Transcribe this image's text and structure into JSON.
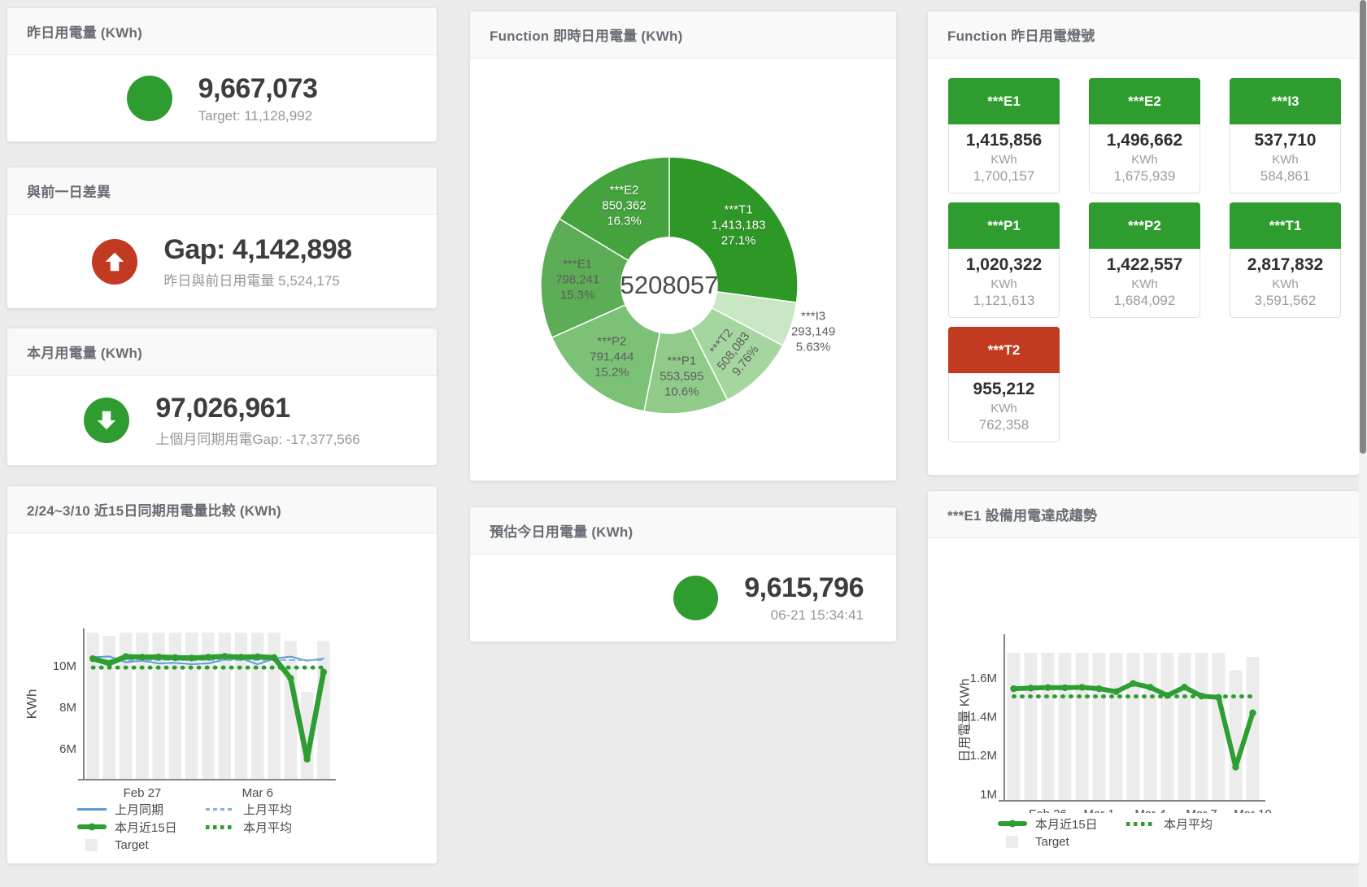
{
  "colors": {
    "green": "#2e9c2e",
    "red": "#c23a22",
    "bar_gray": "#ececec",
    "blue": "#5d9cd3",
    "blue_light": "#7fb2dd",
    "chart_green": "#2f9e32"
  },
  "panels": {
    "yesterday": {
      "title": "昨日用電量 (KWh)",
      "value": "9,667,073",
      "subtitle": "Target: 11,128,992"
    },
    "gap": {
      "title": "與前一日差異",
      "value": "Gap: 4,142,898",
      "subtitle": "昨日與前日用電量 5,524,175"
    },
    "month": {
      "title": "本月用電量 (KWh)",
      "value": "97,026,961",
      "subtitle": "上個月同期用電Gap: -17,377,566"
    },
    "realtime": {
      "title": "Function 即時日用電量 (KWh)"
    },
    "estimate": {
      "title": "預估今日用電量 (KWh)",
      "value": "9,615,796",
      "subtitle": "06-21 15:34:41"
    },
    "tiles": {
      "title": "Function 昨日用電燈號"
    },
    "compare": {
      "title": "2/24~3/10 近15日同期用電量比較 (KWh)"
    },
    "trend": {
      "title": "***E1 設備用電達成趨勢"
    }
  },
  "tiles": [
    {
      "label": "***E1",
      "value": "1,415,856",
      "unit": "KWh",
      "target": "1,700,157",
      "status": "green"
    },
    {
      "label": "***E2",
      "value": "1,496,662",
      "unit": "KWh",
      "target": "1,675,939",
      "status": "green"
    },
    {
      "label": "***I3",
      "value": "537,710",
      "unit": "KWh",
      "target": "584,861",
      "status": "green"
    },
    {
      "label": "***P1",
      "value": "1,020,322",
      "unit": "KWh",
      "target": "1,121,613",
      "status": "green"
    },
    {
      "label": "***P2",
      "value": "1,422,557",
      "unit": "KWh",
      "target": "1,684,092",
      "status": "green"
    },
    {
      "label": "***T1",
      "value": "2,817,832",
      "unit": "KWh",
      "target": "3,591,562",
      "status": "green"
    },
    {
      "label": "***T2",
      "value": "955,212",
      "unit": "KWh",
      "target": "762,358",
      "status": "red"
    }
  ],
  "chart_data": [
    {
      "type": "pie",
      "title": "Function 即時日用電量 (KWh)",
      "center_total": "5208057",
      "slices": [
        {
          "name": "***T1",
          "value": 1413183,
          "display": "1,413,183",
          "pct": "27.1%",
          "color": "#2e9827",
          "label_color": "#ffffff"
        },
        {
          "name": "***I3",
          "value": 293149,
          "display": "293,149",
          "pct": "5.63%",
          "color": "#c9e7c5",
          "label_color": "#5d5d5d",
          "outside": true
        },
        {
          "name": "***T2",
          "value": 508083,
          "display": "508,083",
          "pct": "9.76%",
          "color": "#a6d6a0",
          "label_color": "#5d5d5d",
          "rotate": -52
        },
        {
          "name": "***P1",
          "value": 553595,
          "display": "553,595",
          "pct": "10.6%",
          "color": "#90cb8a",
          "label_color": "#5d5d5d"
        },
        {
          "name": "***P2",
          "value": 791444,
          "display": "791,444",
          "pct": "15.2%",
          "color": "#7cc276",
          "label_color": "#5d5d5d"
        },
        {
          "name": "***E1",
          "value": 798241,
          "display": "798,241",
          "pct": "15.3%",
          "color": "#5cad55",
          "label_color": "#5d5d5d"
        },
        {
          "name": "***E2",
          "value": 850362,
          "display": "850,362",
          "pct": "16.3%",
          "color": "#45a33e",
          "label_color": "#ffffff"
        }
      ]
    },
    {
      "type": "line",
      "title": "2/24~3/10 近15日同期用電量比較 (KWh)",
      "ylabel": "KWh",
      "ylim": [
        4.55,
        11.65
      ],
      "grid": false,
      "legend_position": "bottom",
      "yticks": [
        {
          "v": 6,
          "label": "6M"
        },
        {
          "v": 8,
          "label": "8M"
        },
        {
          "v": 10,
          "label": "10M"
        }
      ],
      "xticks": [
        {
          "i": 3,
          "label": "Feb 27"
        },
        {
          "i": 10,
          "label": "Mar 6"
        }
      ],
      "x_days": "2/24 - 3/10 (15 days)",
      "target": {
        "name": "Target",
        "color": "#ececec",
        "values": [
          11.6,
          11.45,
          11.6,
          11.6,
          11.6,
          11.6,
          11.6,
          11.6,
          11.6,
          11.6,
          11.6,
          11.6,
          11.2,
          8.75,
          11.2
        ]
      },
      "series": [
        {
          "name": "上月同期",
          "type": "line",
          "color": "#5d9cd3",
          "width": 2,
          "values": [
            10.42,
            10.46,
            10.18,
            10.25,
            10.12,
            10.15,
            10.08,
            10.12,
            10.3,
            10.35,
            10.08,
            10.35,
            10.45,
            10.25,
            10.35
          ]
        },
        {
          "name": "上月平均",
          "type": "dash",
          "color": "#7fb2dd",
          "width": 2,
          "values": [
            10.28,
            10.28,
            10.28,
            10.28,
            10.28,
            10.28,
            10.28,
            10.28,
            10.28,
            10.28,
            10.28,
            10.28,
            10.28,
            10.28,
            10.28
          ]
        },
        {
          "name": "本月近15日",
          "type": "thick",
          "color": "#2f9e32",
          "width": 6.5,
          "dots": true,
          "values": [
            10.35,
            10.12,
            10.45,
            10.42,
            10.43,
            10.4,
            10.38,
            10.42,
            10.46,
            10.42,
            10.44,
            10.4,
            9.4,
            5.5,
            9.7
          ]
        },
        {
          "name": "本月平均",
          "type": "dots",
          "color": "#2f9e32",
          "width": 5,
          "values": [
            9.92,
            9.92,
            9.92,
            9.92,
            9.92,
            9.92,
            9.92,
            9.92,
            9.92,
            9.92,
            9.92,
            9.92,
            9.92,
            9.92,
            9.92
          ]
        }
      ],
      "legend": [
        {
          "label": "上月同期",
          "swatch": "line",
          "color": "#5d9cd3"
        },
        {
          "label": "上月平均",
          "swatch": "dash",
          "color": "#7fb2dd"
        },
        {
          "label": "本月近15日",
          "swatch": "thick",
          "color": "#2f9e32"
        },
        {
          "label": "本月平均",
          "swatch": "dots",
          "color": "#2f9e32"
        },
        {
          "label": "Target",
          "swatch": "box",
          "color": "#ececec"
        }
      ]
    },
    {
      "type": "line",
      "title": "***E1 設備用電達成趨勢",
      "ylabel": "日用電量 KWh",
      "ylim": [
        0.97,
        1.81
      ],
      "grid": false,
      "legend_position": "bottom",
      "yticks": [
        {
          "v": 1,
          "label": "1M"
        },
        {
          "v": 1.2,
          "label": "1.2M"
        },
        {
          "v": 1.4,
          "label": "1.4M"
        },
        {
          "v": 1.6,
          "label": "1.6M"
        }
      ],
      "xticks": [
        {
          "i": 2,
          "label": "Feb 26"
        },
        {
          "i": 5,
          "label": "Mar 1"
        },
        {
          "i": 8,
          "label": "Mar 4"
        },
        {
          "i": 11,
          "label": "Mar 7"
        },
        {
          "i": 14,
          "label": "Mar 10"
        }
      ],
      "x_days": "2/24 - 3/10 (15 days)",
      "target": {
        "name": "Target",
        "color": "#ececec",
        "values": [
          1.73,
          1.73,
          1.73,
          1.73,
          1.73,
          1.73,
          1.73,
          1.73,
          1.73,
          1.73,
          1.73,
          1.73,
          1.73,
          1.64,
          1.71
        ]
      },
      "series": [
        {
          "name": "本月近15日",
          "type": "thick",
          "color": "#2f9e32",
          "width": 6,
          "dots": true,
          "values": [
            1.545,
            1.548,
            1.551,
            1.55,
            1.552,
            1.545,
            1.53,
            1.572,
            1.552,
            1.51,
            1.553,
            1.507,
            1.5,
            1.14,
            1.42
          ]
        },
        {
          "name": "本月平均",
          "type": "dots",
          "color": "#2f9e32",
          "width": 5,
          "values": [
            1.505,
            1.505,
            1.505,
            1.505,
            1.505,
            1.505,
            1.505,
            1.505,
            1.505,
            1.505,
            1.505,
            1.505,
            1.505,
            1.505,
            1.505
          ]
        }
      ],
      "legend": [
        {
          "label": "本月近15日",
          "swatch": "thick",
          "color": "#2f9e32"
        },
        {
          "label": "本月平均",
          "swatch": "dots",
          "color": "#2f9e32"
        },
        {
          "label": "Target",
          "swatch": "box",
          "color": "#ececec"
        }
      ]
    }
  ]
}
